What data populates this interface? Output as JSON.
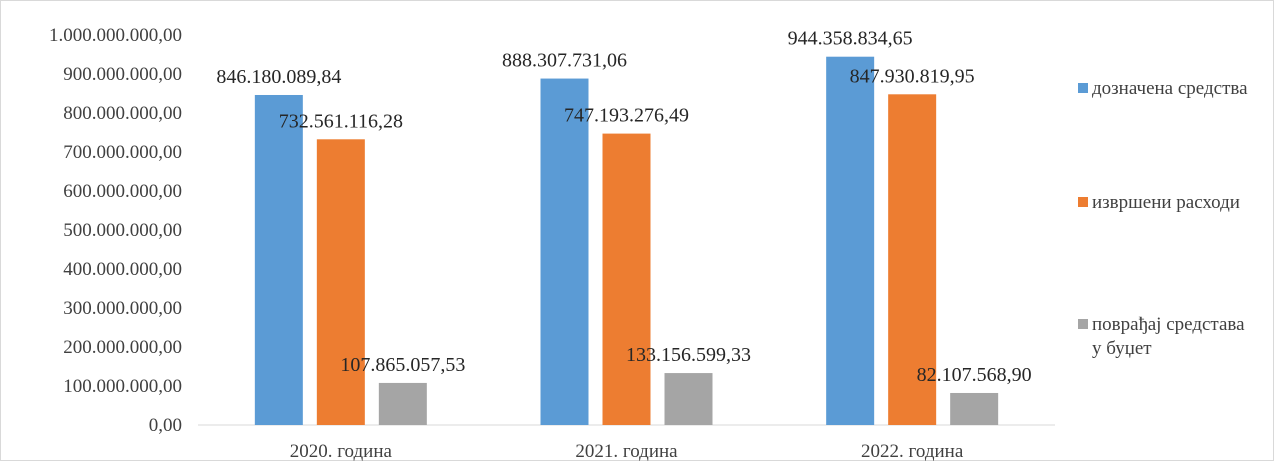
{
  "chart_data": {
    "type": "bar",
    "categories": [
      "2020. година",
      "2021. година",
      "2022. година"
    ],
    "series": [
      {
        "name": "дозначена средства",
        "color": "#5b9bd5",
        "values": [
          846180089.84,
          888307731.06,
          944358834.65
        ],
        "labels": [
          "846.180.089,84",
          "888.307.731,06",
          "944.358.834,65"
        ]
      },
      {
        "name": "извршени расходи",
        "color": "#ed7d31",
        "values": [
          732561116.28,
          747193276.49,
          847930819.95
        ],
        "labels": [
          "732.561.116,28",
          "747.193.276,49",
          "847.930.819,95"
        ]
      },
      {
        "name": "поврађај средстава у буџет",
        "color": "#a5a5a5",
        "values": [
          107865057.53,
          133156599.33,
          82107568.9
        ],
        "labels": [
          "107.865.057,53",
          "133.156.599,33",
          "82.107.568,90"
        ]
      }
    ],
    "yticks": [
      0,
      100000000,
      200000000,
      300000000,
      400000000,
      500000000,
      600000000,
      700000000,
      800000000,
      900000000,
      1000000000
    ],
    "ytick_labels": [
      "0,00",
      "100.000.000,00",
      "200.000.000,00",
      "300.000.000,00",
      "400.000.000,00",
      "500.000.000,00",
      "600.000.000,00",
      "700.000.000,00",
      "800.000.000,00",
      "900.000.000,00",
      "1.000.000.000,00"
    ],
    "ylim": [
      0,
      1000000000
    ],
    "grid": false,
    "legend_position": "right",
    "title": "",
    "xlabel": "",
    "ylabel": ""
  }
}
